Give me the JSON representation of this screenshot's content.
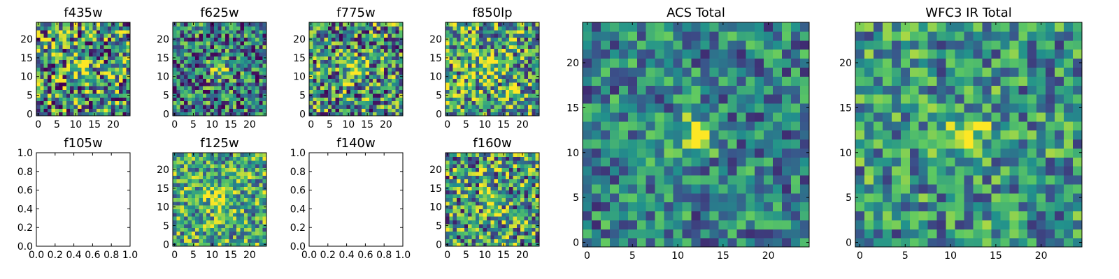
{
  "figure": {
    "colormap": "viridis",
    "colormap_stops": [
      "#440154",
      "#3b528b",
      "#21918c",
      "#5ec962",
      "#fde725"
    ]
  },
  "chart_data": [
    {
      "type": "heatmap",
      "title": "f435w",
      "grid": [
        25,
        25
      ],
      "xlim": [
        -0.5,
        24.5
      ],
      "ylim": [
        -0.5,
        24.5
      ],
      "xticks": [
        0,
        5,
        10,
        15,
        20
      ],
      "yticks": [
        0,
        5,
        10,
        15,
        20
      ],
      "source": {
        "center": [
          12,
          13
        ],
        "strength": 0.35,
        "width": 2.2
      },
      "noise": {
        "level": 0.5,
        "spread": 0.55,
        "seed": 11
      }
    },
    {
      "type": "heatmap",
      "title": "f625w",
      "grid": [
        25,
        25
      ],
      "xlim": [
        -0.5,
        24.5
      ],
      "ylim": [
        -0.5,
        24.5
      ],
      "xticks": [
        0,
        5,
        10,
        15,
        20
      ],
      "yticks": [
        0,
        5,
        10,
        15,
        20
      ],
      "source": {
        "center": [
          12,
          12
        ],
        "strength": 0.45,
        "width": 1.9
      },
      "noise": {
        "level": 0.42,
        "spread": 0.45,
        "seed": 23
      }
    },
    {
      "type": "heatmap",
      "title": "f775w",
      "grid": [
        25,
        25
      ],
      "xlim": [
        -0.5,
        24.5
      ],
      "ylim": [
        -0.5,
        24.5
      ],
      "xticks": [
        0,
        5,
        10,
        15,
        20
      ],
      "yticks": [
        0,
        5,
        10,
        15,
        20
      ],
      "source": {
        "center": [
          12,
          12
        ],
        "strength": 0.45,
        "width": 2.0
      },
      "noise": {
        "level": 0.5,
        "spread": 0.5,
        "seed": 37
      }
    },
    {
      "type": "heatmap",
      "title": "f850lp",
      "grid": [
        25,
        25
      ],
      "xlim": [
        -0.5,
        24.5
      ],
      "ylim": [
        -0.5,
        24.5
      ],
      "xticks": [
        0,
        5,
        10,
        15,
        20
      ],
      "yticks": [
        0,
        5,
        10,
        15,
        20
      ],
      "source": {
        "center": [
          11,
          12
        ],
        "strength": 0.3,
        "width": 2.0
      },
      "noise": {
        "level": 0.6,
        "spread": 0.5,
        "seed": 53
      }
    },
    {
      "type": "heatmap",
      "title": "f105w",
      "empty": true,
      "xlim": [
        0,
        1
      ],
      "ylim": [
        0,
        1
      ],
      "xticks": [
        "0.0",
        "0.2",
        "0.4",
        "0.6",
        "0.8",
        "1.0"
      ],
      "yticks": [
        "0.0",
        "0.2",
        "0.4",
        "0.6",
        "0.8",
        "1.0"
      ]
    },
    {
      "type": "heatmap",
      "title": "f125w",
      "grid": [
        25,
        25
      ],
      "xlim": [
        -0.5,
        24.5
      ],
      "ylim": [
        -0.5,
        24.5
      ],
      "xticks": [
        0,
        5,
        10,
        15,
        20
      ],
      "yticks": [
        0,
        5,
        10,
        15,
        20
      ],
      "source": {
        "center": [
          12,
          12
        ],
        "strength": 0.3,
        "width": 2.6
      },
      "noise": {
        "level": 0.6,
        "spread": 0.4,
        "seed": 71
      }
    },
    {
      "type": "heatmap",
      "title": "f140w",
      "empty": true,
      "xlim": [
        0,
        1
      ],
      "ylim": [
        0,
        1
      ],
      "xticks": [
        "0.0",
        "0.2",
        "0.4",
        "0.6",
        "0.8",
        "1.0"
      ],
      "yticks": [
        "0.0",
        "0.2",
        "0.4",
        "0.6",
        "0.8",
        "1.0"
      ]
    },
    {
      "type": "heatmap",
      "title": "f160w",
      "grid": [
        25,
        25
      ],
      "xlim": [
        -0.5,
        24.5
      ],
      "ylim": [
        -0.5,
        24.5
      ],
      "xticks": [
        0,
        5,
        10,
        15,
        20
      ],
      "yticks": [
        0,
        5,
        10,
        15,
        20
      ],
      "source": {
        "center": [
          12,
          11
        ],
        "strength": 0.3,
        "width": 2.2
      },
      "noise": {
        "level": 0.55,
        "spread": 0.5,
        "seed": 89
      }
    },
    {
      "type": "heatmap",
      "title": "ACS Total",
      "grid": [
        25,
        25
      ],
      "xlim": [
        -0.5,
        24.5
      ],
      "ylim": [
        -0.5,
        24.5
      ],
      "xticks": [
        0,
        5,
        10,
        15,
        20
      ],
      "yticks": [
        0,
        5,
        10,
        15,
        20
      ],
      "source": {
        "center": [
          12,
          12
        ],
        "strength": 0.55,
        "width": 1.5
      },
      "noise": {
        "level": 0.45,
        "spread": 0.32,
        "seed": 101
      }
    },
    {
      "type": "heatmap",
      "title": "WFC3 IR Total",
      "grid": [
        25,
        25
      ],
      "xlim": [
        -0.5,
        24.5
      ],
      "ylim": [
        -0.5,
        24.5
      ],
      "xticks": [
        0,
        5,
        10,
        15,
        20
      ],
      "yticks": [
        0,
        5,
        10,
        15,
        20
      ],
      "source": {
        "center": [
          12,
          12
        ],
        "strength": 0.45,
        "width": 1.7
      },
      "noise": {
        "level": 0.52,
        "spread": 0.35,
        "seed": 131
      }
    }
  ]
}
